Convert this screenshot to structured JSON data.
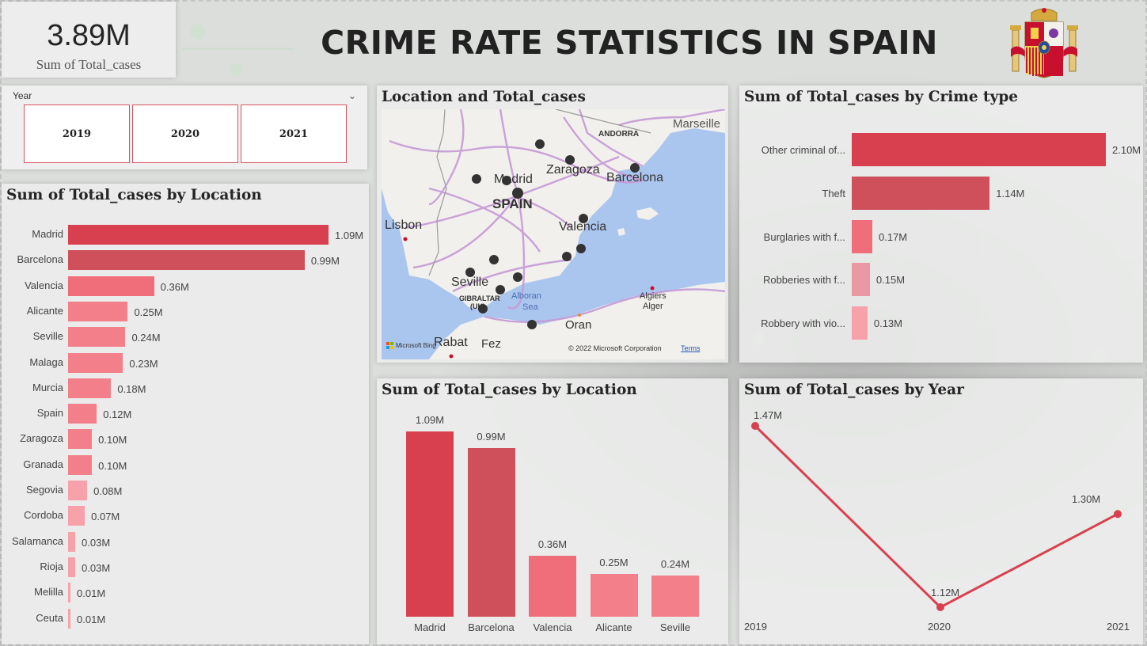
{
  "colors": {
    "bar_dark": "#d9404f",
    "bar_mid": "#cf4f5a",
    "bar_light": "#f06e7a",
    "bar_lighter": "#f37f8a",
    "bar_pale": "#f7a1aa",
    "accent": "#d6545f",
    "map_water": "#abc6ee",
    "map_land": "#f1f0ec"
  },
  "kpi": {
    "value": "3.89M",
    "label": "Sum of Total_cases"
  },
  "header": {
    "title": "CRIME RATE STATISTICS IN SPAIN",
    "emblem": "spain-coat-of-arms-icon"
  },
  "slicer": {
    "label": "Year",
    "options": [
      "2019",
      "2020",
      "2021"
    ]
  },
  "location_chart": {
    "title": "Sum of Total_cases by Location",
    "chart_data": {
      "type": "bar",
      "orientation": "horizontal",
      "categories": [
        "Madrid",
        "Barcelona",
        "Valencia",
        "Alicante",
        "Seville",
        "Malaga",
        "Murcia",
        "Spain",
        "Zaragoza",
        "Granada",
        "Segovia",
        "Cordoba",
        "Salamanca",
        "Rioja",
        "Melilla",
        "Ceuta"
      ],
      "values": [
        1.09,
        0.99,
        0.36,
        0.25,
        0.24,
        0.23,
        0.18,
        0.12,
        0.1,
        0.1,
        0.08,
        0.07,
        0.03,
        0.03,
        0.01,
        0.01
      ],
      "labels": [
        "1.09M",
        "0.99M",
        "0.36M",
        "0.25M",
        "0.24M",
        "0.23M",
        "0.18M",
        "0.12M",
        "0.10M",
        "0.10M",
        "0.08M",
        "0.07M",
        "0.03M",
        "0.03M",
        "0.01M",
        "0.01M"
      ],
      "unit": "M",
      "xlim": [
        0,
        1.09
      ]
    }
  },
  "map": {
    "title": "Location and Total_cases",
    "labels": {
      "marseille": "Marseille",
      "andorra": "ANDORRA",
      "zaragoza": "Zaragoza",
      "barcelona": "Barcelona",
      "madrid": "Madrid",
      "spain": "SPAIN",
      "lisbon": "Lisbon",
      "valencia": "Valencia",
      "seville": "Seville",
      "gibraltar": "GIBRALTAR",
      "uk": "(UK)",
      "alboran": "Alboran",
      "sea": "Sea",
      "algiers": "Algiers",
      "alger": "Alger",
      "oran": "Oran",
      "rabat": "Rabat",
      "fez": "Fez"
    },
    "logo": "Microsoft Bing",
    "copyright": "© 2022 Microsoft Corporation",
    "terms": "Terms"
  },
  "crime_chart": {
    "title": "Sum of Total_cases by Crime type",
    "chart_data": {
      "type": "bar",
      "orientation": "horizontal",
      "categories": [
        "Other criminal of...",
        "Theft",
        "Burglaries with f...",
        "Robberies with f...",
        "Robbery with vio..."
      ],
      "values": [
        2.1,
        1.14,
        0.17,
        0.15,
        0.13
      ],
      "labels": [
        "2.10M",
        "1.14M",
        "0.17M",
        "0.15M",
        "0.13M"
      ],
      "unit": "M",
      "xlim": [
        0,
        2.1
      ]
    }
  },
  "location_column": {
    "title": "Sum of Total_cases by Location",
    "chart_data": {
      "type": "bar",
      "orientation": "vertical",
      "categories": [
        "Madrid",
        "Barcelona",
        "Valencia",
        "Alicante",
        "Seville"
      ],
      "values": [
        1.09,
        0.99,
        0.36,
        0.25,
        0.24
      ],
      "labels": [
        "1.09M",
        "0.99M",
        "0.36M",
        "0.25M",
        "0.24M"
      ],
      "unit": "M",
      "ylim": [
        0,
        1.09
      ]
    }
  },
  "year_chart": {
    "title": "Sum of Total_cases by Year",
    "chart_data": {
      "type": "line",
      "x": [
        "2019",
        "2020",
        "2021"
      ],
      "values": [
        1.47,
        1.12,
        1.3
      ],
      "labels": [
        "1.47M",
        "1.12M",
        "1.30M"
      ],
      "unit": "M",
      "ylim": [
        1.12,
        1.47
      ]
    }
  }
}
